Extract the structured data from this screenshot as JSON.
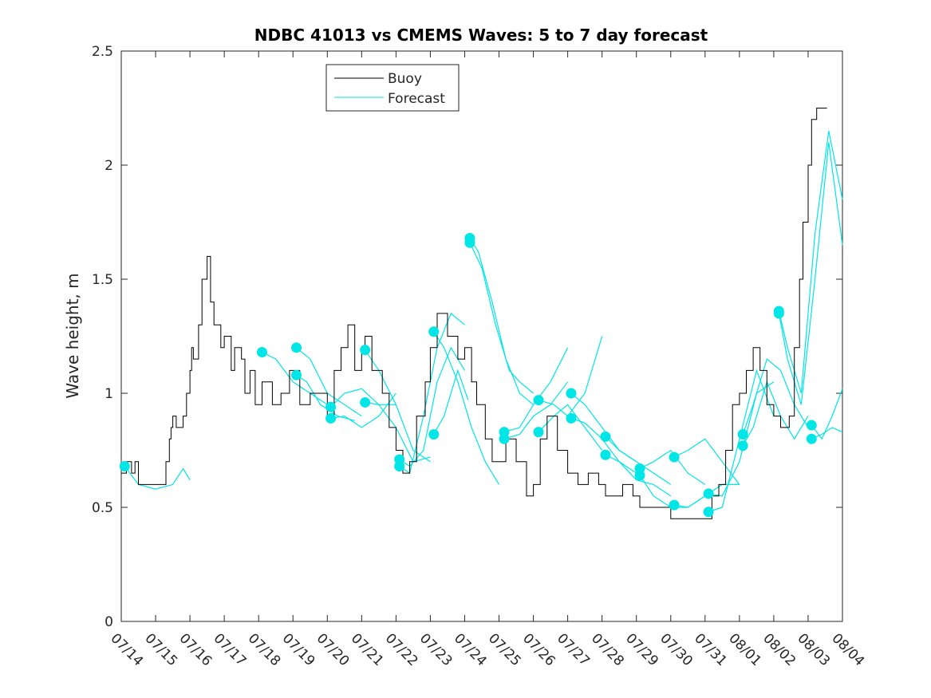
{
  "chart_data": {
    "type": "line",
    "title": "NDBC 41013 vs CMEMS Waves: 5 to 7 day forecast",
    "xlabel": "",
    "ylabel": "Wave height, m",
    "ylim": [
      0,
      2.5
    ],
    "xlim": [
      0,
      21
    ],
    "grid": false,
    "legend_position": "top-left, inside plot",
    "y_ticks": [
      {
        "value": 0,
        "label": "0"
      },
      {
        "value": 0.5,
        "label": "0.5"
      },
      {
        "value": 1,
        "label": "1"
      },
      {
        "value": 1.5,
        "label": "1.5"
      },
      {
        "value": 2,
        "label": "2"
      },
      {
        "value": 2.5,
        "label": "2.5"
      }
    ],
    "x_ticks": [
      {
        "value": 0,
        "label": "07/14"
      },
      {
        "value": 1,
        "label": "07/15"
      },
      {
        "value": 2,
        "label": "07/16"
      },
      {
        "value": 3,
        "label": "07/17"
      },
      {
        "value": 4,
        "label": "07/18"
      },
      {
        "value": 5,
        "label": "07/19"
      },
      {
        "value": 6,
        "label": "07/20"
      },
      {
        "value": 7,
        "label": "07/21"
      },
      {
        "value": 8,
        "label": "07/22"
      },
      {
        "value": 9,
        "label": "07/23"
      },
      {
        "value": 10,
        "label": "07/24"
      },
      {
        "value": 11,
        "label": "07/25"
      },
      {
        "value": 12,
        "label": "07/26"
      },
      {
        "value": 13,
        "label": "07/27"
      },
      {
        "value": 14,
        "label": "07/28"
      },
      {
        "value": 15,
        "label": "07/29"
      },
      {
        "value": 16,
        "label": "07/30"
      },
      {
        "value": 17,
        "label": "07/31"
      },
      {
        "value": 18,
        "label": "08/01"
      },
      {
        "value": 19,
        "label": "08/02"
      },
      {
        "value": 20,
        "label": "08/03"
      },
      {
        "value": 21,
        "label": "08/04"
      }
    ],
    "colors": {
      "buoy": "#000000",
      "forecast": "#00e5e5",
      "axis": "#262626"
    },
    "series": [
      {
        "name": "Buoy",
        "style": "step-line",
        "x": [
          0,
          0.15,
          0.3,
          0.4,
          0.5,
          0.7,
          1.2,
          1.3,
          1.4,
          1.45,
          1.5,
          1.6,
          1.8,
          1.9,
          2.0,
          2.05,
          2.1,
          2.25,
          2.35,
          2.5,
          2.6,
          2.7,
          2.9,
          3.0,
          3.2,
          3.3,
          3.5,
          3.6,
          3.75,
          3.9,
          4.1,
          4.4,
          4.65,
          4.9,
          5.2,
          5.5,
          6.0,
          6.2,
          6.4,
          6.6,
          6.8,
          7.0,
          7.1,
          7.3,
          7.6,
          7.8,
          8.0,
          8.2,
          8.4,
          8.6,
          8.85,
          9.0,
          9.2,
          9.5,
          9.8,
          10.0,
          10.2,
          10.35,
          10.6,
          10.8,
          11.0,
          11.2,
          11.5,
          11.8,
          12.0,
          12.2,
          12.4,
          12.7,
          13.0,
          13.3,
          13.6,
          13.9,
          14.1,
          14.4,
          14.6,
          14.9,
          15.1,
          15.4,
          15.7,
          16.0,
          16.3,
          16.6,
          17.0,
          17.2,
          17.4,
          17.6,
          17.8,
          18.0,
          18.2,
          18.4,
          18.6,
          18.8,
          19.0,
          19.2,
          19.45,
          19.6,
          19.75,
          19.85,
          20.0,
          20.1,
          20.25,
          20.4
        ],
        "values": [
          0.65,
          0.7,
          0.65,
          0.7,
          0.6,
          0.6,
          0.6,
          0.7,
          0.8,
          0.85,
          0.9,
          0.85,
          0.9,
          1.0,
          1.1,
          1.2,
          1.15,
          1.3,
          1.5,
          1.6,
          1.4,
          1.3,
          1.2,
          1.25,
          1.1,
          1.2,
          1.15,
          1.0,
          1.1,
          0.95,
          1.05,
          0.95,
          1.0,
          1.1,
          0.95,
          1.0,
          0.9,
          1.1,
          1.2,
          1.3,
          1.1,
          1.2,
          1.25,
          1.1,
          1.0,
          0.85,
          0.75,
          0.65,
          0.7,
          0.9,
          1.05,
          1.2,
          1.35,
          1.25,
          1.15,
          1.2,
          1.05,
          0.95,
          0.8,
          0.7,
          0.7,
          0.8,
          0.7,
          0.55,
          0.6,
          0.8,
          0.9,
          0.75,
          0.65,
          0.6,
          0.65,
          0.6,
          0.55,
          0.55,
          0.6,
          0.55,
          0.5,
          0.5,
          0.5,
          0.45,
          0.45,
          0.45,
          0.45,
          0.55,
          0.6,
          0.75,
          0.95,
          1.0,
          1.1,
          1.2,
          1.1,
          0.95,
          0.9,
          0.85,
          0.9,
          1.2,
          1.5,
          1.75,
          2.0,
          2.2,
          2.25,
          2.25
        ]
      },
      {
        "name": "Forecast",
        "style": "multi-run lines with initial-point markers",
        "runs": [
          {
            "x": [
              0.1,
              0.5,
              1.0,
              1.5,
              1.8,
              2.0
            ],
            "values": [
              0.68,
              0.6,
              0.58,
              0.6,
              0.67,
              0.62
            ],
            "marker": [
              0.1,
              0.68
            ]
          },
          {
            "x": [
              4.1,
              4.5,
              5.0,
              5.5,
              6.0
            ],
            "values": [
              1.18,
              1.15,
              1.05,
              1.0,
              0.95
            ],
            "marker": [
              4.1,
              1.18
            ]
          },
          {
            "x": [
              5.1,
              5.5,
              6.0,
              6.5,
              7.0
            ],
            "values": [
              1.2,
              1.15,
              1.0,
              0.95,
              0.9
            ],
            "marker": [
              5.1,
              1.2
            ]
          },
          {
            "x": [
              5.1,
              5.4,
              5.8,
              6.3,
              6.8
            ],
            "values": [
              1.08,
              1.05,
              0.95,
              0.9,
              0.88
            ],
            "marker": [
              5.1,
              1.08
            ]
          },
          {
            "x": [
              6.1,
              6.5,
              7.0,
              7.5,
              8.0
            ],
            "values": [
              0.94,
              1.0,
              1.02,
              0.95,
              0.95
            ],
            "marker": [
              6.1,
              0.94
            ]
          },
          {
            "x": [
              6.1,
              6.5,
              7.0,
              7.5,
              8.0
            ],
            "values": [
              0.89,
              0.9,
              0.85,
              0.9,
              1.0
            ],
            "marker": [
              6.1,
              0.89
            ]
          },
          {
            "x": [
              7.1,
              7.5,
              8.0,
              8.5,
              9.0
            ],
            "values": [
              1.19,
              1.1,
              0.95,
              0.75,
              0.7
            ],
            "marker": [
              7.1,
              1.19
            ]
          },
          {
            "x": [
              7.1,
              7.5,
              8.0,
              8.5,
              9.0
            ],
            "values": [
              0.96,
              0.95,
              0.85,
              0.7,
              0.72
            ],
            "marker": [
              7.1,
              0.96
            ]
          },
          {
            "x": [
              8.1,
              8.4,
              8.8,
              9.2,
              9.6,
              10.0
            ],
            "values": [
              0.71,
              0.68,
              0.75,
              1.05,
              1.2,
              1.1
            ],
            "marker": [
              8.1,
              0.71
            ]
          },
          {
            "x": [
              8.1,
              8.4,
              8.8,
              9.2,
              9.6,
              10.0
            ],
            "values": [
              0.68,
              0.65,
              0.9,
              1.2,
              1.35,
              1.3
            ],
            "marker": [
              8.1,
              0.68
            ]
          },
          {
            "x": [
              9.1,
              9.4,
              9.8,
              10.2,
              10.6,
              11.0
            ],
            "values": [
              1.27,
              1.2,
              1.05,
              0.85,
              0.7,
              0.6
            ],
            "marker": [
              9.1,
              1.27
            ]
          },
          {
            "x": [
              9.1,
              9.4,
              9.8,
              10.1
            ],
            "values": [
              0.82,
              0.9,
              1.1,
              0.97
            ],
            "marker": [
              9.1,
              0.82
            ]
          },
          {
            "x": [
              10.15,
              10.4,
              10.8,
              11.2,
              11.6,
              12.0
            ],
            "values": [
              1.68,
              1.62,
              1.4,
              1.15,
              1.0,
              0.95
            ],
            "marker": [
              10.15,
              1.68
            ]
          },
          {
            "x": [
              10.15,
              10.5,
              10.9,
              11.3,
              11.6,
              12.0
            ],
            "values": [
              1.66,
              1.55,
              1.3,
              1.1,
              1.05,
              1.0
            ],
            "marker": [
              10.15,
              1.66
            ]
          },
          {
            "x": [
              11.15,
              11.6,
              12.0,
              12.5,
              13.0
            ],
            "values": [
              0.83,
              0.85,
              0.95,
              1.05,
              1.2
            ],
            "marker": [
              11.15,
              0.83
            ]
          },
          {
            "x": [
              11.15,
              11.6,
              12.0,
              12.5,
              13.0
            ],
            "values": [
              0.8,
              0.82,
              0.9,
              0.95,
              1.05
            ],
            "marker": [
              11.15,
              0.8
            ]
          },
          {
            "x": [
              12.15,
              12.6,
              13.0,
              13.5,
              14.0
            ],
            "values": [
              0.97,
              0.95,
              0.9,
              1.0,
              1.25
            ],
            "marker": [
              12.15,
              0.97
            ]
          },
          {
            "x": [
              12.15,
              12.6,
              13.0,
              13.5,
              14.0
            ],
            "values": [
              0.83,
              0.9,
              0.95,
              0.85,
              0.75
            ],
            "marker": [
              12.15,
              0.83
            ]
          },
          {
            "x": [
              13.1,
              13.5,
              14.0,
              14.5,
              15.0
            ],
            "values": [
              1.0,
              0.95,
              0.85,
              0.75,
              0.7
            ],
            "marker": [
              13.1,
              1.0
            ]
          },
          {
            "x": [
              13.1,
              13.5,
              14.0,
              14.5,
              15.0
            ],
            "values": [
              0.89,
              0.87,
              0.8,
              0.7,
              0.65
            ],
            "marker": [
              13.1,
              0.89
            ]
          },
          {
            "x": [
              14.1,
              14.5,
              15.0,
              15.5,
              16.0
            ],
            "values": [
              0.81,
              0.75,
              0.7,
              0.65,
              0.6
            ],
            "marker": [
              14.1,
              0.81
            ]
          },
          {
            "x": [
              14.1,
              14.5,
              15.0,
              15.5,
              16.0
            ],
            "values": [
              0.73,
              0.7,
              0.62,
              0.6,
              0.55
            ],
            "marker": [
              14.1,
              0.73
            ]
          },
          {
            "x": [
              15.1,
              15.5,
              16.0,
              16.5,
              17.0
            ],
            "values": [
              0.67,
              0.7,
              0.75,
              0.65,
              0.6
            ],
            "marker": [
              15.1,
              0.67
            ]
          },
          {
            "x": [
              15.1,
              15.5,
              16.0,
              16.5,
              17.0
            ],
            "values": [
              0.64,
              0.55,
              0.5,
              0.5,
              0.55
            ],
            "marker": [
              15.1,
              0.64
            ]
          },
          {
            "x": [
              16.1,
              16.5,
              17.0,
              17.5,
              18.0
            ],
            "values": [
              0.72,
              0.75,
              0.8,
              0.7,
              0.6
            ],
            "marker": [
              16.1,
              0.72
            ]
          },
          {
            "x": [
              16.1,
              16.5,
              17.0,
              17.5,
              18.0
            ],
            "values": [
              0.51,
              0.5,
              0.55,
              0.6,
              0.6
            ],
            "marker": [
              16.1,
              0.51
            ]
          },
          {
            "x": [
              17.1,
              17.5,
              18.0,
              18.5,
              19.0
            ],
            "values": [
              0.56,
              0.55,
              0.7,
              1.0,
              1.05
            ],
            "marker": [
              17.1,
              0.56
            ]
          },
          {
            "x": [
              17.1,
              17.5,
              18.0,
              18.5,
              19.0
            ],
            "values": [
              0.48,
              0.5,
              0.8,
              1.1,
              0.9
            ],
            "marker": [
              17.1,
              0.48
            ]
          },
          {
            "x": [
              18.1,
              18.4,
              18.8,
              19.2,
              19.6,
              20.0
            ],
            "values": [
              0.82,
              0.95,
              1.15,
              1.1,
              0.95,
              0.85
            ],
            "marker": [
              18.1,
              0.82
            ]
          },
          {
            "x": [
              18.1,
              18.4,
              18.8,
              19.2,
              19.6,
              20.0
            ],
            "values": [
              0.77,
              0.85,
              1.05,
              0.9,
              0.8,
              0.9
            ],
            "marker": [
              18.1,
              0.77
            ]
          },
          {
            "x": [
              19.15,
              19.4,
              19.8,
              20.2,
              20.6,
              21.0
            ],
            "values": [
              1.36,
              1.2,
              1.0,
              1.7,
              2.15,
              1.85
            ],
            "marker": [
              19.15,
              1.36
            ]
          },
          {
            "x": [
              19.15,
              19.4,
              19.8,
              20.2,
              20.6,
              21.0
            ],
            "values": [
              1.35,
              1.15,
              0.95,
              1.5,
              2.1,
              1.65
            ],
            "marker": [
              19.15,
              1.35
            ]
          },
          {
            "x": [
              20.1,
              20.4,
              20.7,
              21.0
            ],
            "values": [
              0.86,
              0.8,
              0.9,
              1.02
            ],
            "marker": [
              20.1,
              0.86
            ]
          },
          {
            "x": [
              20.1,
              20.4,
              20.7,
              21.0
            ],
            "values": [
              0.8,
              0.82,
              0.85,
              0.83
            ],
            "marker": [
              20.1,
              0.8
            ]
          }
        ]
      }
    ]
  }
}
